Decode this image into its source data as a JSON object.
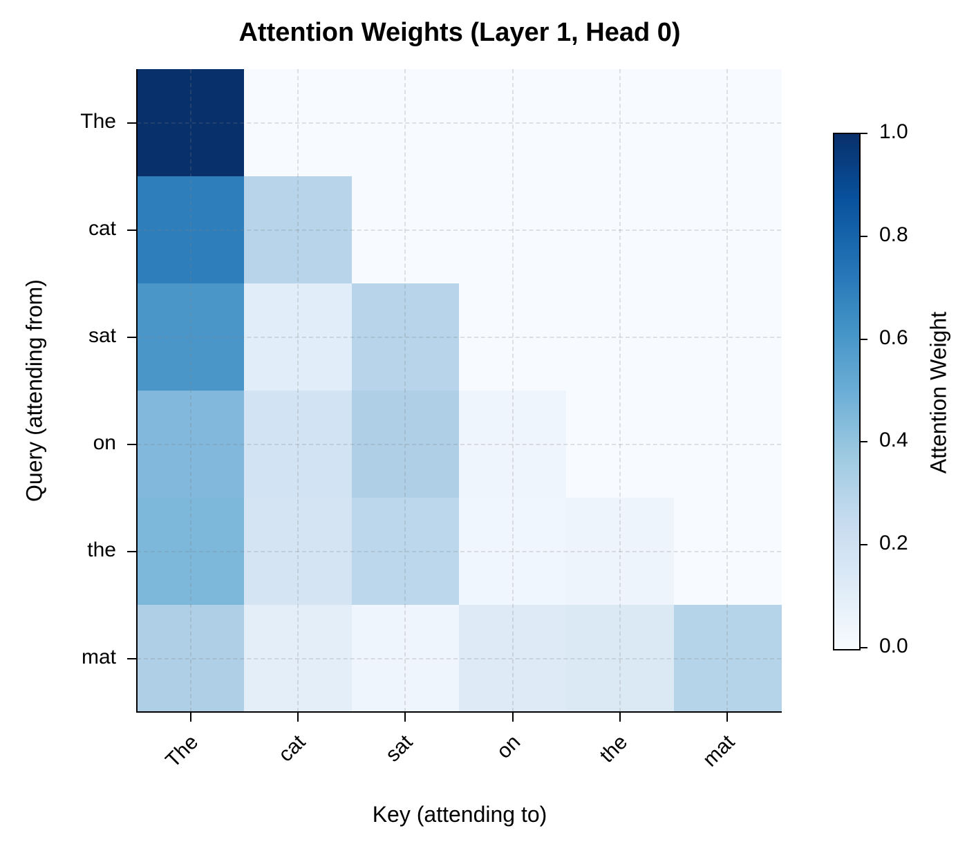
{
  "chart_data": {
    "type": "heatmap",
    "title": "Attention Weights (Layer 1, Head 0)",
    "xlabel": "Key (attending to)",
    "ylabel": "Query (attending from)",
    "x_categories": [
      "The",
      "cat",
      "sat",
      "on",
      "the",
      "mat"
    ],
    "y_categories": [
      "The",
      "cat",
      "sat",
      "on",
      "the",
      "mat"
    ],
    "values": [
      [
        1.0,
        0.0,
        0.0,
        0.0,
        0.0,
        0.0
      ],
      [
        0.7,
        0.3,
        0.0,
        0.0,
        0.0,
        0.0
      ],
      [
        0.58,
        0.12,
        0.3,
        0.0,
        0.0,
        0.0
      ],
      [
        0.45,
        0.2,
        0.32,
        0.04,
        0.0,
        0.0
      ],
      [
        0.47,
        0.19,
        0.27,
        0.03,
        0.04,
        0.0
      ],
      [
        0.33,
        0.11,
        0.06,
        0.14,
        0.15,
        0.31
      ]
    ],
    "cell_colors": [
      [
        "#08306b",
        "#f7fbff",
        "#f7fbff",
        "#f7fbff",
        "#f7fbff",
        "#f7fbff"
      ],
      [
        "#2e7ebc",
        "#b7d4ea",
        "#f7fbff",
        "#f7fbff",
        "#f7fbff",
        "#f7fbff"
      ],
      [
        "#4a96c9",
        "#e1edf8",
        "#b7d4ea",
        "#f7fbff",
        "#f7fbff",
        "#f7fbff"
      ],
      [
        "#81b8db",
        "#d2e3f3",
        "#aecfe6",
        "#eef5fd",
        "#f7fbff",
        "#f7fbff"
      ],
      [
        "#7db7da",
        "#d4e4f3",
        "#bcd7eb",
        "#eff6fd",
        "#edf4fc",
        "#f7fbff"
      ],
      [
        "#aecfe5",
        "#e3eef9",
        "#eef5fd",
        "#deeaf6",
        "#dbe9f5",
        "#b6d4e9"
      ]
    ],
    "colormap": "Blues",
    "colorbar": {
      "label": "Attention Weight",
      "range": [
        0.0,
        1.0
      ],
      "ticks": [
        "0.0",
        "0.2",
        "0.4",
        "0.6",
        "0.8",
        "1.0"
      ]
    },
    "grid": true,
    "grid_style": "dashed"
  }
}
